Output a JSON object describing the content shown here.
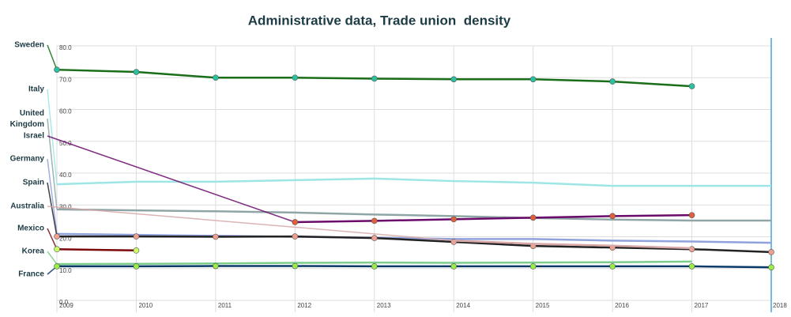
{
  "chart_data": {
    "type": "line",
    "title": "Administrative data, Trade union  density",
    "x": [
      2009,
      2010,
      2011,
      2012,
      2013,
      2014,
      2015,
      2016,
      2017,
      2018
    ],
    "xlim": [
      2009,
      2018
    ],
    "xticks": [
      2009,
      2010,
      2011,
      2012,
      2013,
      2014,
      2015,
      2016,
      2017,
      2018
    ],
    "ylim": [
      0,
      80
    ],
    "yticks": [
      {
        "value": 0,
        "label": "0.0"
      },
      {
        "value": 10,
        "label": "10.0"
      },
      {
        "value": 20,
        "label": "20.0"
      },
      {
        "value": 30,
        "label": "30.0"
      },
      {
        "value": 40,
        "label": "40.0"
      },
      {
        "value": 50,
        "label": "50.0"
      },
      {
        "value": 60,
        "label": "60.0"
      },
      {
        "value": 70,
        "label": "70.0"
      },
      {
        "value": 80,
        "label": "80.0"
      }
    ],
    "grid": true,
    "series": [
      {
        "name": "Sweden",
        "color": "#1a6e1a",
        "marker": "#2ac0a0",
        "values": [
          72.5,
          71.8,
          70.0,
          70.0,
          69.7,
          69.5,
          69.5,
          68.8,
          67.3,
          null
        ]
      },
      {
        "name": "Italy",
        "color": "#9ee6e6",
        "values": [
          36.5,
          37.3,
          37.3,
          37.8,
          38.3,
          37.5,
          37.0,
          36.0,
          36.0,
          36.0
        ]
      },
      {
        "name": "United Kingdom",
        "color": "#90a6a6",
        "values": [
          28.6,
          28.3,
          28.0,
          27.6,
          27.0,
          26.5,
          25.9,
          25.4,
          25.1,
          25.1
        ]
      },
      {
        "name": "Israel",
        "color": "#6a0a6a",
        "marker": "#e0603a",
        "values": [
          null,
          null,
          null,
          24.6,
          25.0,
          25.5,
          26.0,
          26.5,
          26.8,
          null
        ]
      },
      {
        "name": "Germany",
        "color": "#90a2dc",
        "values": [
          20.9,
          20.6,
          20.3,
          20.0,
          19.7,
          19.3,
          19.3,
          18.8,
          18.5,
          18.1
        ]
      },
      {
        "name": "Spain",
        "color": "#222222",
        "marker": "#f0a090",
        "values": [
          20.1,
          20.1,
          20.0,
          20.1,
          19.6,
          18.4,
          17.1,
          16.6,
          16.1,
          15.2
        ]
      },
      {
        "name": "Australia",
        "color": "#d8a8a8",
        "values": [
          null,
          null,
          null,
          null,
          null,
          18.8,
          17.8,
          17.2,
          16.4,
          null
        ]
      },
      {
        "name": "Mexico",
        "color": "#7a0a0a",
        "marker": "#ccff66",
        "values": [
          16.1,
          15.7,
          null,
          null,
          null,
          null,
          null,
          null,
          null,
          null
        ]
      },
      {
        "name": "Korea",
        "color": "#7ccc8c",
        "values": [
          11.4,
          11.5,
          11.6,
          11.8,
          11.9,
          11.8,
          11.9,
          12.0,
          12.2,
          null
        ]
      },
      {
        "name": "France",
        "color": "#0a3a6a",
        "marker": "#99ee44",
        "values": [
          10.7,
          10.7,
          10.8,
          10.8,
          10.7,
          10.7,
          10.7,
          10.7,
          10.7,
          10.4
        ]
      }
    ]
  }
}
